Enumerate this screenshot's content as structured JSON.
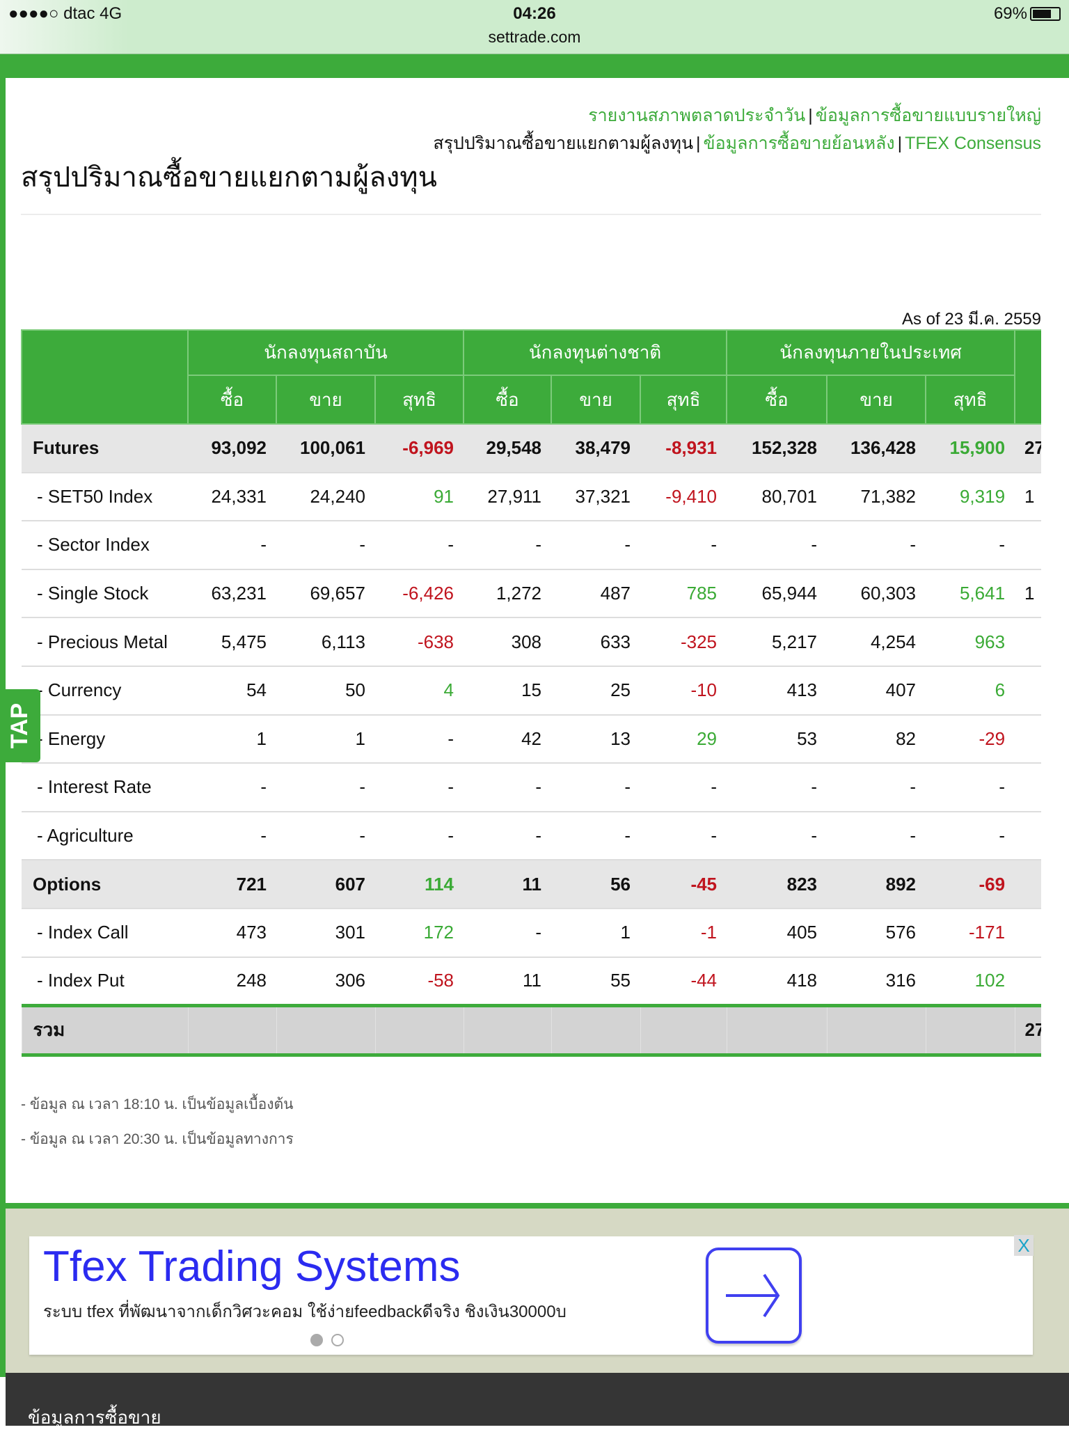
{
  "status": {
    "carrier": "●●●●○ dtac  4G",
    "time": "04:26",
    "url": "settrade.com",
    "battery": "69%"
  },
  "nav_links": {
    "daily_report": "รายงานสภาพตลาดประจำวัน",
    "large_trade": "ข้อมูลการซื้อขายแบบรายใหญ่",
    "summary_current": "สรุปปริมาณซื้อขายแยกตามผู้ลงทุน",
    "history": "ข้อมูลการซื้อขายย้อนหลัง",
    "consensus": "TFEX Consensus",
    "separator": "|"
  },
  "page_title": "สรุปปริมาณซื้อขายแยกตามผู้ลงทุน",
  "as_of": "As of 23 มี.ค. 2559",
  "table": {
    "groups": [
      "นักลงทุนสถาบัน",
      "นักลงทุนต่างชาติ",
      "นักลงทุนภายในประเทศ"
    ],
    "subheaders": [
      "ซื้อ",
      "ขาย",
      "สุทธิ",
      "ซื้อ",
      "ขาย",
      "สุทธิ",
      "ซื้อ",
      "ขาย",
      "สุทธิ"
    ],
    "rows": [
      {
        "label": "Futures",
        "group": true,
        "values": [
          "93,092",
          "100,061",
          "-6,969",
          "29,548",
          "38,479",
          "-8,931",
          "152,328",
          "136,428",
          "15,900",
          "27"
        ]
      },
      {
        "label": "- SET50 Index",
        "values": [
          "24,331",
          "24,240",
          "91",
          "27,911",
          "37,321",
          "-9,410",
          "80,701",
          "71,382",
          "9,319",
          "1"
        ]
      },
      {
        "label": "- Sector Index",
        "values": [
          "-",
          "-",
          "-",
          "-",
          "-",
          "-",
          "-",
          "-",
          "-",
          ""
        ]
      },
      {
        "label": "- Single Stock",
        "values": [
          "63,231",
          "69,657",
          "-6,426",
          "1,272",
          "487",
          "785",
          "65,944",
          "60,303",
          "5,641",
          "1"
        ]
      },
      {
        "label": "- Precious Metal",
        "values": [
          "5,475",
          "6,113",
          "-638",
          "308",
          "633",
          "-325",
          "5,217",
          "4,254",
          "963",
          ""
        ]
      },
      {
        "label": "- Currency",
        "values": [
          "54",
          "50",
          "4",
          "15",
          "25",
          "-10",
          "413",
          "407",
          "6",
          ""
        ]
      },
      {
        "label": "- Energy",
        "values": [
          "1",
          "1",
          "-",
          "42",
          "13",
          "29",
          "53",
          "82",
          "-29",
          ""
        ]
      },
      {
        "label": "- Interest Rate",
        "values": [
          "-",
          "-",
          "-",
          "-",
          "-",
          "-",
          "-",
          "-",
          "-",
          ""
        ]
      },
      {
        "label": "- Agriculture",
        "values": [
          "-",
          "-",
          "-",
          "-",
          "-",
          "-",
          "-",
          "-",
          "-",
          ""
        ]
      },
      {
        "label": "Options",
        "group": true,
        "values": [
          "721",
          "607",
          "114",
          "11",
          "56",
          "-45",
          "823",
          "892",
          "-69",
          ""
        ]
      },
      {
        "label": "- Index Call",
        "values": [
          "473",
          "301",
          "172",
          "-",
          "1",
          "-1",
          "405",
          "576",
          "-171",
          ""
        ]
      },
      {
        "label": "- Index Put",
        "values": [
          "248",
          "306",
          "-58",
          "11",
          "55",
          "-44",
          "418",
          "316",
          "102",
          ""
        ]
      }
    ],
    "total": {
      "label": "รวม",
      "values": [
        "",
        "",
        "",
        "",
        "",
        "",
        "",
        "",
        "",
        "27"
      ]
    }
  },
  "notes": [
    "- ข้อมูล ณ เวลา 18:10 น. เป็นข้อมูลเบื้องต้น",
    "- ข้อมูล ณ เวลา 20:30 น. เป็นข้อมูลทางการ"
  ],
  "tap_label": "TAP",
  "ad": {
    "headline": "Tfex Trading Systems",
    "description": "ระบบ tfex ที่พัฒนาจากเด็กวิศวะคอม ใช้ง่ายfeedbackดีจริง ชิงเงิน30000บ",
    "close": "X"
  },
  "footer_title": "ข้อมูลการซื้อขาย",
  "colors": {
    "brand": "#3dab3b",
    "positive": "#3aaa35",
    "negative": "#c0141e"
  }
}
